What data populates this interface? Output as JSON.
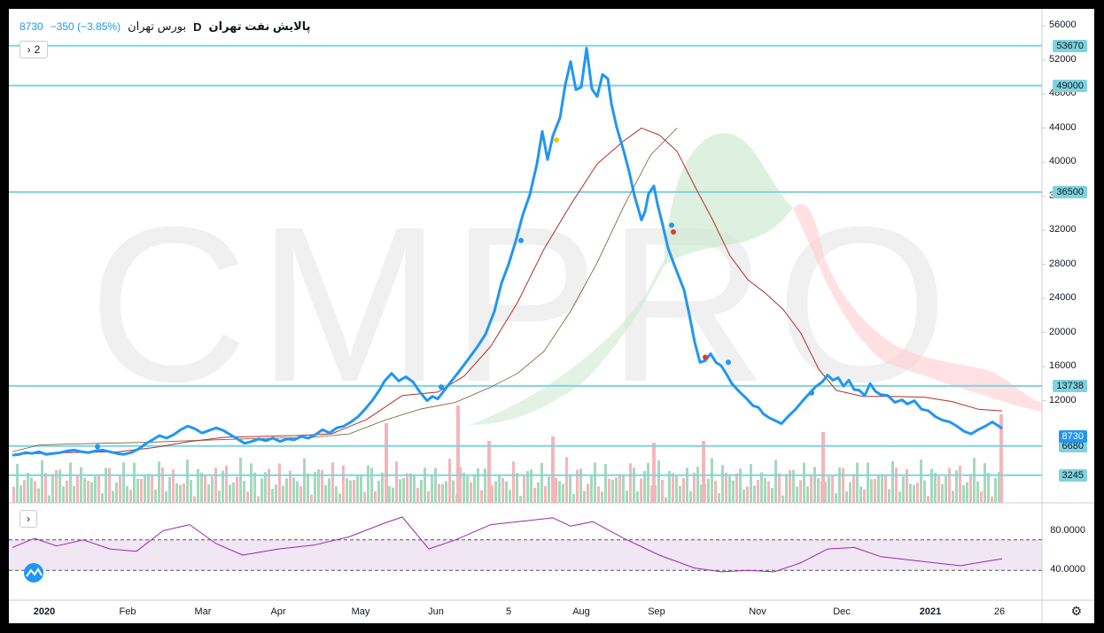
{
  "header": {
    "symbol": "پالایش نفت تهران",
    "exchange": "بورس تهران",
    "interval": "D",
    "last": "8730",
    "change": "−350 (−3.85%)",
    "indicators_count": "2"
  },
  "colors": {
    "price_line": "#2196f3",
    "ma_line": "#b0302b",
    "hline": "#7fd3df",
    "rsi_line": "#9c27b0",
    "rsi_band": "#e9dcef",
    "vol_up": "#a5d9bb",
    "vol_down": "#f6b5b9"
  },
  "axis": {
    "price_ticks": [
      "56000",
      "52000",
      "48000",
      "44000",
      "40000",
      "36000",
      "32000",
      "28000",
      "24000",
      "20000",
      "16000",
      "12000"
    ],
    "rsi_ticks": [
      "80.0000",
      "40.0000"
    ],
    "x_labels": [
      "2020",
      "Feb",
      "Mar",
      "Apr",
      "May",
      "Jun",
      "5",
      "Aug",
      "Sep",
      "Nov",
      "Dec",
      "2021",
      "26"
    ]
  },
  "levels": [
    "53670",
    "49000",
    "36500",
    "13738",
    "6680",
    "3245"
  ],
  "current_label": "8730",
  "watermark": "CMPRO",
  "icons": {
    "collapse": "chevron-right-icon",
    "settings": "gear-icon",
    "logo": "tradingview-logo-icon"
  },
  "chart_data": {
    "type": "line",
    "price_range": [
      0,
      58000
    ],
    "rsi_range": [
      0,
      100
    ],
    "series": [
      {
        "values": [
          [
            0,
            5600
          ],
          [
            8,
            5700
          ],
          [
            15,
            5900
          ],
          [
            22,
            5800
          ],
          [
            30,
            6000
          ],
          [
            38,
            5700
          ],
          [
            46,
            5800
          ],
          [
            54,
            5900
          ],
          [
            62,
            6100
          ],
          [
            70,
            6200
          ],
          [
            78,
            6000
          ],
          [
            86,
            5900
          ],
          [
            94,
            6100
          ],
          [
            102,
            6200
          ],
          [
            110,
            6000
          ],
          [
            118,
            5800
          ],
          [
            126,
            5700
          ],
          [
            134,
            5900
          ],
          [
            142,
            6300
          ],
          [
            150,
            6900
          ],
          [
            158,
            7400
          ],
          [
            166,
            7900
          ],
          [
            174,
            7600
          ],
          [
            182,
            8000
          ],
          [
            190,
            8600
          ],
          [
            198,
            9000
          ],
          [
            206,
            8700
          ],
          [
            214,
            8200
          ],
          [
            222,
            8500
          ],
          [
            230,
            8800
          ],
          [
            238,
            8500
          ],
          [
            246,
            8000
          ],
          [
            254,
            7500
          ],
          [
            262,
            7000
          ],
          [
            270,
            7200
          ],
          [
            278,
            7500
          ],
          [
            286,
            7300
          ],
          [
            294,
            7600
          ],
          [
            302,
            7200
          ],
          [
            310,
            7500
          ],
          [
            318,
            7400
          ],
          [
            326,
            7800
          ],
          [
            334,
            7600
          ],
          [
            342,
            8000
          ],
          [
            350,
            8600
          ],
          [
            358,
            8200
          ],
          [
            366,
            8800
          ],
          [
            374,
            9000
          ],
          [
            382,
            9500
          ],
          [
            390,
            10100
          ],
          [
            398,
            11000
          ],
          [
            406,
            12000
          ],
          [
            414,
            13200
          ],
          [
            420,
            14300
          ],
          [
            428,
            15200
          ],
          [
            436,
            14300
          ],
          [
            444,
            14800
          ],
          [
            452,
            14200
          ],
          [
            460,
            13000
          ],
          [
            468,
            12000
          ],
          [
            474,
            12500
          ],
          [
            480,
            12200
          ],
          [
            486,
            13000
          ],
          [
            494,
            14100
          ],
          [
            504,
            15400
          ],
          [
            514,
            16800
          ],
          [
            524,
            18200
          ],
          [
            534,
            19800
          ],
          [
            544,
            22500
          ],
          [
            552,
            25800
          ],
          [
            560,
            28000
          ],
          [
            568,
            30700
          ],
          [
            576,
            33800
          ],
          [
            584,
            36200
          ],
          [
            592,
            39800
          ],
          [
            598,
            43600
          ],
          [
            604,
            40300
          ],
          [
            610,
            43100
          ],
          [
            618,
            45200
          ],
          [
            624,
            49100
          ],
          [
            630,
            51800
          ],
          [
            636,
            48500
          ],
          [
            642,
            48800
          ],
          [
            648,
            53400
          ],
          [
            654,
            48600
          ],
          [
            660,
            47700
          ],
          [
            666,
            50300
          ],
          [
            672,
            49800
          ],
          [
            676,
            46900
          ],
          [
            682,
            44100
          ],
          [
            690,
            41300
          ],
          [
            696,
            38900
          ],
          [
            702,
            36100
          ],
          [
            710,
            33200
          ],
          [
            714,
            34200
          ],
          [
            718,
            36300
          ],
          [
            724,
            37200
          ],
          [
            728,
            35100
          ],
          [
            734,
            32600
          ],
          [
            740,
            29900
          ],
          [
            746,
            28200
          ],
          [
            752,
            26600
          ],
          [
            758,
            25000
          ],
          [
            764,
            22100
          ],
          [
            770,
            18900
          ],
          [
            776,
            16500
          ],
          [
            782,
            16700
          ],
          [
            788,
            17500
          ],
          [
            794,
            16500
          ],
          [
            800,
            16100
          ],
          [
            806,
            15100
          ],
          [
            812,
            14000
          ],
          [
            820,
            13100
          ],
          [
            828,
            12300
          ],
          [
            836,
            11400
          ],
          [
            842,
            11200
          ],
          [
            848,
            10400
          ],
          [
            854,
            10000
          ],
          [
            862,
            9600
          ],
          [
            868,
            9300
          ],
          [
            876,
            10200
          ],
          [
            884,
            11000
          ],
          [
            892,
            12000
          ],
          [
            900,
            12900
          ],
          [
            906,
            13600
          ],
          [
            914,
            14200
          ],
          [
            920,
            15000
          ],
          [
            926,
            14400
          ],
          [
            932,
            14700
          ],
          [
            938,
            13700
          ],
          [
            944,
            14400
          ],
          [
            950,
            13300
          ],
          [
            956,
            13200
          ],
          [
            962,
            12600
          ],
          [
            968,
            14000
          ],
          [
            974,
            13100
          ],
          [
            980,
            12700
          ],
          [
            988,
            12600
          ],
          [
            996,
            11800
          ],
          [
            1004,
            12100
          ],
          [
            1010,
            11600
          ],
          [
            1018,
            12000
          ],
          [
            1026,
            11000
          ],
          [
            1034,
            10800
          ],
          [
            1042,
            10100
          ],
          [
            1050,
            9700
          ],
          [
            1058,
            9500
          ],
          [
            1066,
            9000
          ],
          [
            1074,
            8400
          ],
          [
            1082,
            8100
          ],
          [
            1090,
            8600
          ],
          [
            1098,
            9000
          ],
          [
            1106,
            9500
          ],
          [
            1112,
            9100
          ],
          [
            1117,
            8730
          ]
        ]
      },
      {
        "values": [
          [
            0,
            5700
          ],
          [
            60,
            5900
          ],
          [
            120,
            6000
          ],
          [
            160,
            6500
          ],
          [
            200,
            7200
          ],
          [
            240,
            7700
          ],
          [
            280,
            7800
          ],
          [
            320,
            7900
          ],
          [
            360,
            8100
          ],
          [
            400,
            9800
          ],
          [
            440,
            12600
          ],
          [
            480,
            13000
          ],
          [
            510,
            14900
          ],
          [
            540,
            18400
          ],
          [
            570,
            23500
          ],
          [
            600,
            29800
          ],
          [
            630,
            35000
          ],
          [
            660,
            39800
          ],
          [
            690,
            42500
          ],
          [
            710,
            44000
          ],
          [
            730,
            43200
          ],
          [
            750,
            41300
          ],
          [
            770,
            37200
          ],
          [
            790,
            33300
          ],
          [
            810,
            29000
          ],
          [
            830,
            26200
          ],
          [
            850,
            24600
          ],
          [
            870,
            22700
          ],
          [
            890,
            19900
          ],
          [
            910,
            15700
          ],
          [
            930,
            13200
          ],
          [
            960,
            12500
          ],
          [
            990,
            12500
          ],
          [
            1030,
            12400
          ],
          [
            1060,
            11900
          ],
          [
            1090,
            11000
          ],
          [
            1117,
            10800
          ]
        ]
      },
      {
        "values": [
          [
            0,
            6000
          ],
          [
            30,
            6800
          ],
          [
            60,
            6900
          ],
          [
            100,
            7000
          ],
          [
            150,
            7100
          ],
          [
            200,
            7300
          ],
          [
            260,
            7500
          ],
          [
            300,
            7600
          ],
          [
            340,
            7700
          ],
          [
            380,
            8100
          ],
          [
            420,
            9700
          ],
          [
            460,
            11000
          ],
          [
            500,
            11800
          ],
          [
            540,
            13600
          ],
          [
            570,
            15200
          ],
          [
            600,
            17800
          ],
          [
            630,
            22500
          ],
          [
            660,
            28200
          ],
          [
            690,
            34800
          ],
          [
            720,
            40800
          ],
          [
            750,
            44000
          ]
        ]
      },
      {
        "values": [
          [
            0,
            60
          ],
          [
            25,
            72
          ],
          [
            50,
            62
          ],
          [
            80,
            70
          ],
          [
            110,
            58
          ],
          [
            140,
            55
          ],
          [
            170,
            82
          ],
          [
            200,
            90
          ],
          [
            230,
            65
          ],
          [
            260,
            50
          ],
          [
            300,
            58
          ],
          [
            340,
            63
          ],
          [
            380,
            74
          ],
          [
            420,
            92
          ],
          [
            440,
            100
          ],
          [
            470,
            58
          ],
          [
            500,
            70
          ],
          [
            540,
            90
          ],
          [
            580,
            95
          ],
          [
            610,
            99
          ],
          [
            630,
            88
          ],
          [
            655,
            94
          ],
          [
            690,
            72
          ],
          [
            730,
            50
          ],
          [
            770,
            33
          ],
          [
            800,
            28
          ],
          [
            830,
            30
          ],
          [
            860,
            28
          ],
          [
            890,
            40
          ],
          [
            920,
            58
          ],
          [
            950,
            60
          ],
          [
            980,
            48
          ],
          [
            1010,
            44
          ],
          [
            1040,
            40
          ],
          [
            1070,
            36
          ],
          [
            1100,
            42
          ],
          [
            1117,
            45
          ]
        ]
      }
    ]
  }
}
